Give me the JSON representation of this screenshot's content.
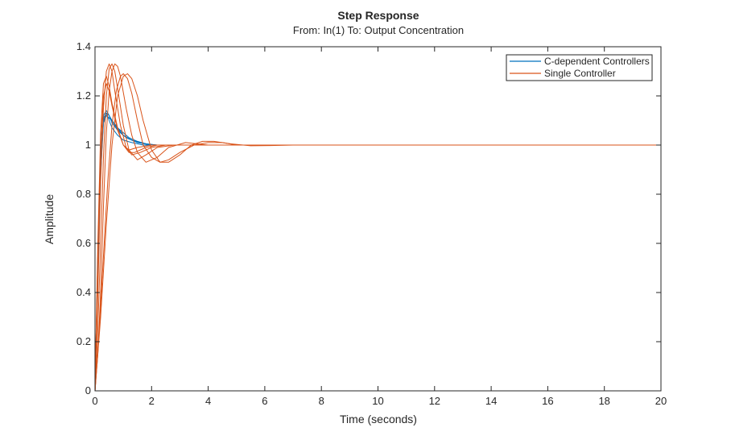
{
  "chart_data": {
    "type": "line",
    "title": "Step Response",
    "subtitle": "From: In(1)  To: Output Concentration",
    "xlabel": "Time (seconds)",
    "ylabel": "Amplitude",
    "xlim": [
      0,
      20
    ],
    "ylim": [
      0,
      1.4
    ],
    "xticks": [
      0,
      2,
      4,
      6,
      8,
      10,
      12,
      14,
      16,
      18,
      20
    ],
    "yticks": [
      0,
      0.2,
      0.4,
      0.6,
      0.8,
      1,
      1.2,
      1.4
    ],
    "xtick_labels": [
      "0",
      "2",
      "4",
      "6",
      "8",
      "10",
      "12",
      "14",
      "16",
      "18",
      "20"
    ],
    "ytick_labels": [
      "0",
      "0.2",
      "0.4",
      "0.6",
      "0.8",
      "1",
      "1.2",
      "1.4"
    ],
    "grid": false,
    "legend_position": "top-right",
    "legend": [
      "C-dependent Controllers",
      "Single Controller"
    ],
    "colors": {
      "c_dependent": "#0072bd",
      "single": "#d95319",
      "axis": "#262626"
    },
    "series": [
      {
        "name": "C-dependent Controllers",
        "color": "#0072bd",
        "curves": [
          {
            "x": [
              0,
              0.1,
              0.2,
              0.3,
              0.4,
              0.5,
              0.6,
              0.8,
              1.0,
              1.2,
              1.5,
              2.0,
              2.5,
              3.0,
              20
            ],
            "y": [
              0,
              0.55,
              0.95,
              1.12,
              1.14,
              1.12,
              1.09,
              1.06,
              1.04,
              1.025,
              1.01,
              1.0,
              1.0,
              1.0,
              1.0
            ]
          },
          {
            "x": [
              0,
              0.1,
              0.2,
              0.3,
              0.4,
              0.5,
              0.7,
              0.9,
              1.1,
              1.4,
              1.8,
              2.2,
              3.0,
              20
            ],
            "y": [
              0,
              0.5,
              0.9,
              1.1,
              1.13,
              1.12,
              1.08,
              1.05,
              1.03,
              1.015,
              1.005,
              1.0,
              1.0,
              1.0
            ]
          },
          {
            "x": [
              0,
              0.1,
              0.2,
              0.3,
              0.4,
              0.5,
              0.6,
              0.8,
              1.0,
              1.3,
              1.7,
              2.2,
              3.0,
              20
            ],
            "y": [
              0,
              0.52,
              0.93,
              1.11,
              1.13,
              1.1,
              1.07,
              1.04,
              1.02,
              1.01,
              1.0,
              1.0,
              1.0,
              1.0
            ]
          },
          {
            "x": [
              0,
              0.1,
              0.2,
              0.3,
              0.4,
              0.5,
              0.6,
              0.8,
              1.0,
              1.3,
              1.6,
              2.0,
              2.6,
              20
            ],
            "y": [
              0,
              0.48,
              0.88,
              1.09,
              1.12,
              1.11,
              1.1,
              1.07,
              1.04,
              1.02,
              1.01,
              1.0,
              1.0,
              1.0
            ]
          },
          {
            "x": [
              0,
              0.1,
              0.2,
              0.3,
              0.4,
              0.6,
              0.8,
              1.0,
              1.2,
              1.5,
              1.8,
              2.2,
              2.8,
              20
            ],
            "y": [
              0,
              0.5,
              0.9,
              1.1,
              1.12,
              1.1,
              1.07,
              1.05,
              1.03,
              1.015,
              1.005,
              1.0,
              1.0,
              1.0
            ]
          }
        ]
      },
      {
        "name": "Single Controller",
        "color": "#d95319",
        "curves": [
          {
            "x": [
              0,
              0.1,
              0.2,
              0.3,
              0.4,
              0.5,
              0.6,
              0.8,
              1.0,
              1.2,
              1.4,
              1.8,
              2.2,
              2.8,
              20
            ],
            "y": [
              0,
              0.6,
              1.05,
              1.25,
              1.28,
              1.24,
              1.17,
              1.07,
              1.0,
              0.97,
              0.97,
              0.99,
              1.0,
              1.0,
              1.0
            ]
          },
          {
            "x": [
              0,
              0.1,
              0.2,
              0.3,
              0.4,
              0.5,
              0.6,
              0.7,
              0.9,
              1.1,
              1.3,
              1.6,
              2.0,
              2.5,
              3.0,
              20
            ],
            "y": [
              0,
              0.4,
              0.85,
              1.15,
              1.3,
              1.33,
              1.3,
              1.22,
              1.08,
              0.99,
              0.96,
              0.97,
              0.99,
              1.0,
              1.0,
              1.0
            ]
          },
          {
            "x": [
              0,
              0.1,
              0.2,
              0.3,
              0.4,
              0.5,
              0.6,
              0.7,
              0.8,
              1.0,
              1.2,
              1.5,
              1.8,
              2.2,
              2.8,
              3.5,
              20
            ],
            "y": [
              0,
              0.25,
              0.6,
              0.95,
              1.2,
              1.31,
              1.33,
              1.3,
              1.23,
              1.08,
              0.98,
              0.94,
              0.96,
              0.99,
              1.0,
              1.0,
              1.0
            ]
          },
          {
            "x": [
              0,
              0.1,
              0.2,
              0.3,
              0.4,
              0.5,
              0.6,
              0.7,
              0.8,
              0.9,
              1.1,
              1.3,
              1.5,
              1.8,
              2.2,
              2.6,
              3.2,
              4.0,
              20
            ],
            "y": [
              0,
              0.15,
              0.4,
              0.75,
              1.05,
              1.22,
              1.3,
              1.33,
              1.32,
              1.28,
              1.15,
              1.04,
              0.97,
              0.93,
              0.95,
              0.99,
              1.01,
              1.0,
              1.0
            ]
          },
          {
            "x": [
              0,
              0.15,
              0.3,
              0.45,
              0.6,
              0.75,
              0.9,
              1.0,
              1.15,
              1.3,
              1.5,
              1.7,
              2.0,
              2.3,
              2.6,
              3.0,
              3.5,
              4.0,
              4.5,
              5.0,
              20
            ],
            "y": [
              0,
              0.25,
              0.55,
              0.85,
              1.08,
              1.22,
              1.28,
              1.29,
              1.27,
              1.21,
              1.1,
              1.0,
              0.95,
              0.93,
              0.94,
              0.97,
              1.0,
              1.01,
              1.01,
              1.0,
              1.0
            ]
          },
          {
            "x": [
              0,
              0.2,
              0.4,
              0.6,
              0.8,
              1.0,
              1.15,
              1.3,
              1.5,
              1.7,
              2.0,
              2.3,
              2.6,
              3.0,
              3.4,
              3.8,
              4.2,
              4.8,
              5.5,
              6.2,
              7.0,
              20
            ],
            "y": [
              0,
              0.3,
              0.68,
              1.0,
              1.2,
              1.28,
              1.29,
              1.27,
              1.2,
              1.1,
              0.98,
              0.93,
              0.93,
              0.96,
              1.0,
              1.015,
              1.015,
              1.005,
              0.997,
              0.998,
              1.0,
              1.0
            ]
          },
          {
            "x": [
              0,
              0.1,
              0.2,
              0.3,
              0.4,
              0.5,
              0.6,
              0.8,
              1.0,
              1.2,
              1.5,
              2.0,
              2.5,
              20
            ],
            "y": [
              0,
              0.55,
              0.98,
              1.2,
              1.25,
              1.22,
              1.16,
              1.06,
              1.0,
              0.98,
              0.99,
              1.0,
              1.0,
              1.0
            ]
          }
        ]
      }
    ]
  }
}
